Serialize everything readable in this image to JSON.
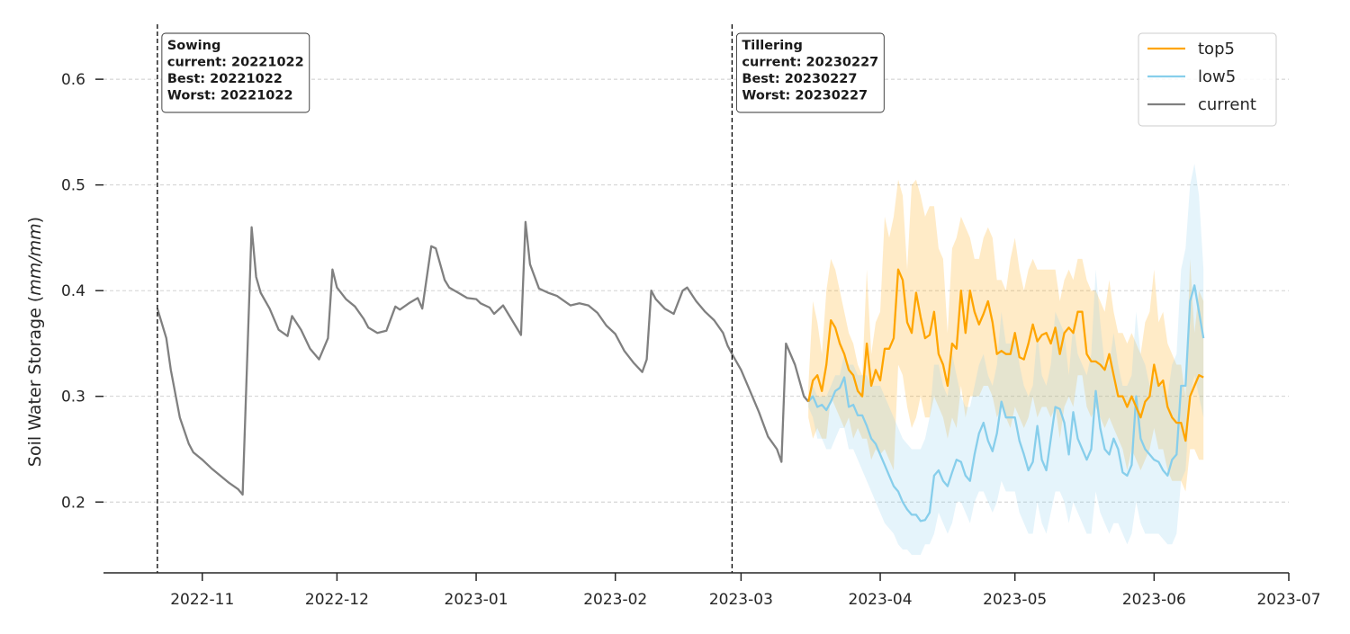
{
  "chart_data": {
    "type": "line",
    "ylabel": "Soil Water Storage (mm/mm)",
    "ylabel_plain": "Soil Water Storage (",
    "ylabel_italic": "mm/mm",
    "ylabel_close": ")",
    "xlim": [
      "2022-10-10",
      "2023-07-01"
    ],
    "ylim": [
      0.133,
      0.652
    ],
    "yticks": [
      0.2,
      0.3,
      0.4,
      0.5,
      0.6
    ],
    "ytick_labels": [
      "0.2",
      "0.3",
      "0.4",
      "0.5",
      "0.6"
    ],
    "xticks": [
      "2022-11-01",
      "2022-12-01",
      "2023-01-01",
      "2023-02-01",
      "2023-03-01",
      "2023-04-01",
      "2023-05-01",
      "2023-06-01",
      "2023-07-01"
    ],
    "xtick_labels": [
      "2022-11",
      "2022-12",
      "2023-01",
      "2023-02",
      "2023-03",
      "2023-04",
      "2023-05",
      "2023-06",
      "2023-07"
    ],
    "grid": "y-dashed",
    "legend_position": "top-right",
    "colors": {
      "top5": "#ffa500",
      "low5": "#87ceeb",
      "current": "#808080",
      "event": "#000000"
    },
    "events": [
      {
        "date": "2022-10-22",
        "lines": [
          "Sowing",
          "current: 20221022",
          "Best: 20221022",
          "Worst: 20221022"
        ]
      },
      {
        "date": "2023-02-27",
        "lines": [
          "Tillering",
          "current: 20230227",
          "Best: 20230227",
          "Worst: 20230227"
        ]
      }
    ],
    "series": [
      {
        "name": "current",
        "x": [
          "2022-10-22",
          "2022-10-24",
          "2022-10-25",
          "2022-10-27",
          "2022-10-29",
          "2022-10-30",
          "2022-11-01",
          "2022-11-03",
          "2022-11-05",
          "2022-11-07",
          "2022-11-09",
          "2022-11-10",
          "2022-11-12",
          "2022-11-13",
          "2022-11-14",
          "2022-11-16",
          "2022-11-18",
          "2022-11-20",
          "2022-11-21",
          "2022-11-23",
          "2022-11-25",
          "2022-11-27",
          "2022-11-29",
          "2022-11-30",
          "2022-12-01",
          "2022-12-03",
          "2022-12-05",
          "2022-12-07",
          "2022-12-08",
          "2022-12-10",
          "2022-12-12",
          "2022-12-14",
          "2022-12-15",
          "2022-12-17",
          "2022-12-19",
          "2022-12-20",
          "2022-12-22",
          "2022-12-23",
          "2022-12-25",
          "2022-12-26",
          "2022-12-28",
          "2022-12-30",
          "2023-01-01",
          "2023-01-02",
          "2023-01-04",
          "2023-01-05",
          "2023-01-07",
          "2023-01-09",
          "2023-01-11",
          "2023-01-12",
          "2023-01-13",
          "2023-01-15",
          "2023-01-17",
          "2023-01-19",
          "2023-01-20",
          "2023-01-22",
          "2023-01-24",
          "2023-01-26",
          "2023-01-28",
          "2023-01-30",
          "2023-02-01",
          "2023-02-03",
          "2023-02-05",
          "2023-02-07",
          "2023-02-08",
          "2023-02-09",
          "2023-02-10",
          "2023-02-12",
          "2023-02-14",
          "2023-02-16",
          "2023-02-17",
          "2023-02-19",
          "2023-02-21",
          "2023-02-23",
          "2023-02-25",
          "2023-02-26",
          "2023-02-27",
          "2023-03-01",
          "2023-03-03",
          "2023-03-05",
          "2023-03-07",
          "2023-03-09",
          "2023-03-10",
          "2023-03-11",
          "2023-03-13",
          "2023-03-15",
          "2023-03-16"
        ],
        "y": [
          0.383,
          0.355,
          0.325,
          0.28,
          0.255,
          0.247,
          0.24,
          0.232,
          0.225,
          0.218,
          0.212,
          0.207,
          0.46,
          0.413,
          0.398,
          0.383,
          0.363,
          0.357,
          0.376,
          0.363,
          0.345,
          0.335,
          0.355,
          0.42,
          0.403,
          0.392,
          0.385,
          0.373,
          0.365,
          0.36,
          0.362,
          0.385,
          0.382,
          0.388,
          0.393,
          0.383,
          0.442,
          0.44,
          0.41,
          0.403,
          0.398,
          0.393,
          0.392,
          0.388,
          0.384,
          0.378,
          0.386,
          0.372,
          0.358,
          0.465,
          0.425,
          0.402,
          0.398,
          0.395,
          0.392,
          0.386,
          0.388,
          0.386,
          0.379,
          0.367,
          0.359,
          0.343,
          0.332,
          0.323,
          0.335,
          0.4,
          0.392,
          0.383,
          0.378,
          0.4,
          0.403,
          0.39,
          0.38,
          0.372,
          0.36,
          0.348,
          0.34,
          0.325,
          0.305,
          0.285,
          0.262,
          0.25,
          0.238,
          0.35,
          0.33,
          0.3,
          0.295
        ]
      },
      {
        "name": "top5",
        "x": [
          "2023-03-16",
          "2023-03-17",
          "2023-03-18",
          "2023-03-19",
          "2023-03-20",
          "2023-03-21",
          "2023-03-22",
          "2023-03-23",
          "2023-03-24",
          "2023-03-25",
          "2023-03-26",
          "2023-03-27",
          "2023-03-28",
          "2023-03-29",
          "2023-03-30",
          "2023-03-31",
          "2023-04-01",
          "2023-04-02",
          "2023-04-03",
          "2023-04-04",
          "2023-04-05",
          "2023-04-06",
          "2023-04-07",
          "2023-04-08",
          "2023-04-09",
          "2023-04-10",
          "2023-04-11",
          "2023-04-12",
          "2023-04-13",
          "2023-04-14",
          "2023-04-15",
          "2023-04-16",
          "2023-04-17",
          "2023-04-18",
          "2023-04-19",
          "2023-04-20",
          "2023-04-21",
          "2023-04-22",
          "2023-04-23",
          "2023-04-24",
          "2023-04-25",
          "2023-04-26",
          "2023-04-27",
          "2023-04-28",
          "2023-04-29",
          "2023-04-30",
          "2023-05-01",
          "2023-05-02",
          "2023-05-03",
          "2023-05-04",
          "2023-05-05",
          "2023-05-06",
          "2023-05-07",
          "2023-05-08",
          "2023-05-09",
          "2023-05-10",
          "2023-05-11",
          "2023-05-12",
          "2023-05-13",
          "2023-05-14",
          "2023-05-15",
          "2023-05-16",
          "2023-05-17",
          "2023-05-18",
          "2023-05-19",
          "2023-05-20",
          "2023-05-21",
          "2023-05-22",
          "2023-05-23",
          "2023-05-24",
          "2023-05-25",
          "2023-05-26",
          "2023-05-27",
          "2023-05-28",
          "2023-05-29",
          "2023-05-30",
          "2023-05-31",
          "2023-06-01",
          "2023-06-02",
          "2023-06-03",
          "2023-06-04",
          "2023-06-05",
          "2023-06-06",
          "2023-06-07",
          "2023-06-08",
          "2023-06-09",
          "2023-06-10",
          "2023-06-11",
          "2023-06-12"
        ],
        "y": [
          0.295,
          0.315,
          0.32,
          0.305,
          0.33,
          0.372,
          0.365,
          0.35,
          0.34,
          0.325,
          0.32,
          0.305,
          0.3,
          0.35,
          0.31,
          0.325,
          0.315,
          0.345,
          0.345,
          0.355,
          0.42,
          0.41,
          0.37,
          0.36,
          0.398,
          0.375,
          0.355,
          0.358,
          0.38,
          0.34,
          0.33,
          0.31,
          0.35,
          0.345,
          0.4,
          0.36,
          0.4,
          0.38,
          0.368,
          0.378,
          0.39,
          0.37,
          0.34,
          0.343,
          0.34,
          0.34,
          0.36,
          0.337,
          0.335,
          0.35,
          0.368,
          0.352,
          0.358,
          0.36,
          0.35,
          0.365,
          0.34,
          0.36,
          0.365,
          0.36,
          0.38,
          0.38,
          0.34,
          0.333,
          0.333,
          0.33,
          0.325,
          0.34,
          0.32,
          0.3,
          0.3,
          0.29,
          0.3,
          0.29,
          0.28,
          0.295,
          0.3,
          0.33,
          0.31,
          0.315,
          0.29,
          0.28,
          0.275,
          0.275,
          0.258,
          0.3,
          0.31,
          0.32,
          0.318
        ]
      },
      {
        "name": "low5",
        "x": [
          "2023-03-16",
          "2023-03-17",
          "2023-03-18",
          "2023-03-19",
          "2023-03-20",
          "2023-03-21",
          "2023-03-22",
          "2023-03-23",
          "2023-03-24",
          "2023-03-25",
          "2023-03-26",
          "2023-03-27",
          "2023-03-28",
          "2023-03-29",
          "2023-03-30",
          "2023-03-31",
          "2023-04-01",
          "2023-04-02",
          "2023-04-03",
          "2023-04-04",
          "2023-04-05",
          "2023-04-06",
          "2023-04-07",
          "2023-04-08",
          "2023-04-09",
          "2023-04-10",
          "2023-04-11",
          "2023-04-12",
          "2023-04-13",
          "2023-04-14",
          "2023-04-15",
          "2023-04-16",
          "2023-04-17",
          "2023-04-18",
          "2023-04-19",
          "2023-04-20",
          "2023-04-21",
          "2023-04-22",
          "2023-04-23",
          "2023-04-24",
          "2023-04-25",
          "2023-04-26",
          "2023-04-27",
          "2023-04-28",
          "2023-04-29",
          "2023-04-30",
          "2023-05-01",
          "2023-05-02",
          "2023-05-03",
          "2023-05-04",
          "2023-05-05",
          "2023-05-06",
          "2023-05-07",
          "2023-05-08",
          "2023-05-09",
          "2023-05-10",
          "2023-05-11",
          "2023-05-12",
          "2023-05-13",
          "2023-05-14",
          "2023-05-15",
          "2023-05-16",
          "2023-05-17",
          "2023-05-18",
          "2023-05-19",
          "2023-05-20",
          "2023-05-21",
          "2023-05-22",
          "2023-05-23",
          "2023-05-24",
          "2023-05-25",
          "2023-05-26",
          "2023-05-27",
          "2023-05-28",
          "2023-05-29",
          "2023-05-30",
          "2023-05-31",
          "2023-06-01",
          "2023-06-02",
          "2023-06-03",
          "2023-06-04",
          "2023-06-05",
          "2023-06-06",
          "2023-06-07",
          "2023-06-08",
          "2023-06-09",
          "2023-06-10",
          "2023-06-11",
          "2023-06-12"
        ],
        "y": [
          0.295,
          0.3,
          0.29,
          0.292,
          0.287,
          0.295,
          0.305,
          0.308,
          0.318,
          0.29,
          0.292,
          0.282,
          0.282,
          0.272,
          0.26,
          0.255,
          0.245,
          0.235,
          0.225,
          0.215,
          0.21,
          0.2,
          0.193,
          0.188,
          0.188,
          0.182,
          0.183,
          0.19,
          0.225,
          0.23,
          0.22,
          0.215,
          0.228,
          0.24,
          0.238,
          0.225,
          0.22,
          0.245,
          0.265,
          0.275,
          0.258,
          0.248,
          0.265,
          0.295,
          0.28,
          0.28,
          0.28,
          0.258,
          0.245,
          0.23,
          0.238,
          0.272,
          0.24,
          0.23,
          0.26,
          0.29,
          0.288,
          0.275,
          0.245,
          0.285,
          0.26,
          0.25,
          0.24,
          0.25,
          0.305,
          0.27,
          0.25,
          0.245,
          0.26,
          0.25,
          0.228,
          0.225,
          0.235,
          0.3,
          0.26,
          0.25,
          0.245,
          0.24,
          0.238,
          0.23,
          0.225,
          0.24,
          0.245,
          0.31,
          0.31,
          0.39,
          0.405,
          0.38,
          0.355
        ]
      }
    ],
    "bands": [
      {
        "name": "top5",
        "upper": [
          0.31,
          0.39,
          0.37,
          0.34,
          0.4,
          0.43,
          0.42,
          0.4,
          0.38,
          0.36,
          0.35,
          0.33,
          0.32,
          0.42,
          0.34,
          0.37,
          0.38,
          0.47,
          0.45,
          0.47,
          0.505,
          0.49,
          0.42,
          0.5,
          0.505,
          0.49,
          0.47,
          0.48,
          0.48,
          0.44,
          0.43,
          0.36,
          0.44,
          0.45,
          0.47,
          0.46,
          0.45,
          0.43,
          0.43,
          0.45,
          0.46,
          0.45,
          0.41,
          0.41,
          0.4,
          0.43,
          0.45,
          0.42,
          0.4,
          0.42,
          0.43,
          0.42,
          0.42,
          0.42,
          0.42,
          0.42,
          0.39,
          0.41,
          0.42,
          0.41,
          0.43,
          0.43,
          0.41,
          0.4,
          0.4,
          0.39,
          0.38,
          0.41,
          0.38,
          0.36,
          0.36,
          0.35,
          0.36,
          0.35,
          0.34,
          0.37,
          0.38,
          0.42,
          0.37,
          0.38,
          0.35,
          0.34,
          0.33,
          0.33,
          0.3,
          0.43,
          0.36,
          0.4,
          0.39
        ],
        "lower": [
          0.28,
          0.26,
          0.27,
          0.26,
          0.26,
          0.3,
          0.29,
          0.28,
          0.27,
          0.28,
          0.26,
          0.27,
          0.26,
          0.26,
          0.24,
          0.25,
          0.245,
          0.25,
          0.24,
          0.23,
          0.33,
          0.32,
          0.29,
          0.27,
          0.28,
          0.3,
          0.28,
          0.28,
          0.3,
          0.29,
          0.28,
          0.26,
          0.28,
          0.27,
          0.31,
          0.28,
          0.3,
          0.3,
          0.3,
          0.31,
          0.31,
          0.3,
          0.28,
          0.29,
          0.28,
          0.27,
          0.29,
          0.28,
          0.27,
          0.28,
          0.3,
          0.28,
          0.29,
          0.29,
          0.28,
          0.29,
          0.26,
          0.29,
          0.3,
          0.29,
          0.32,
          0.32,
          0.29,
          0.28,
          0.29,
          0.28,
          0.27,
          0.28,
          0.27,
          0.26,
          0.25,
          0.23,
          0.25,
          0.24,
          0.23,
          0.24,
          0.25,
          0.27,
          0.25,
          0.25,
          0.23,
          0.22,
          0.22,
          0.22,
          0.21,
          0.25,
          0.25,
          0.24,
          0.24
        ]
      },
      {
        "name": "low5",
        "upper": [
          0.3,
          0.31,
          0.3,
          0.3,
          0.3,
          0.31,
          0.32,
          0.32,
          0.34,
          0.33,
          0.33,
          0.32,
          0.32,
          0.32,
          0.31,
          0.31,
          0.31,
          0.3,
          0.29,
          0.28,
          0.27,
          0.26,
          0.255,
          0.25,
          0.25,
          0.25,
          0.26,
          0.28,
          0.33,
          0.33,
          0.31,
          0.3,
          0.34,
          0.32,
          0.3,
          0.29,
          0.29,
          0.31,
          0.33,
          0.34,
          0.32,
          0.31,
          0.33,
          0.38,
          0.35,
          0.35,
          0.36,
          0.33,
          0.31,
          0.3,
          0.31,
          0.36,
          0.32,
          0.31,
          0.33,
          0.38,
          0.37,
          0.36,
          0.32,
          0.37,
          0.34,
          0.33,
          0.32,
          0.34,
          0.42,
          0.37,
          0.33,
          0.33,
          0.36,
          0.33,
          0.31,
          0.31,
          0.32,
          0.38,
          0.34,
          0.33,
          0.31,
          0.32,
          0.31,
          0.31,
          0.3,
          0.33,
          0.34,
          0.42,
          0.44,
          0.5,
          0.52,
          0.49,
          0.42
        ],
        "lower": [
          0.29,
          0.28,
          0.26,
          0.26,
          0.25,
          0.25,
          0.26,
          0.27,
          0.27,
          0.25,
          0.25,
          0.24,
          0.23,
          0.22,
          0.21,
          0.2,
          0.19,
          0.18,
          0.175,
          0.17,
          0.16,
          0.155,
          0.155,
          0.15,
          0.15,
          0.15,
          0.16,
          0.16,
          0.17,
          0.19,
          0.18,
          0.17,
          0.18,
          0.2,
          0.2,
          0.19,
          0.18,
          0.2,
          0.21,
          0.21,
          0.2,
          0.19,
          0.2,
          0.22,
          0.21,
          0.21,
          0.21,
          0.19,
          0.18,
          0.17,
          0.17,
          0.2,
          0.18,
          0.17,
          0.19,
          0.21,
          0.21,
          0.2,
          0.18,
          0.2,
          0.19,
          0.18,
          0.17,
          0.17,
          0.21,
          0.19,
          0.18,
          0.17,
          0.18,
          0.18,
          0.17,
          0.16,
          0.17,
          0.2,
          0.18,
          0.17,
          0.17,
          0.17,
          0.17,
          0.165,
          0.16,
          0.16,
          0.17,
          0.22,
          0.23,
          0.3,
          0.32,
          0.3,
          0.28
        ]
      }
    ]
  }
}
